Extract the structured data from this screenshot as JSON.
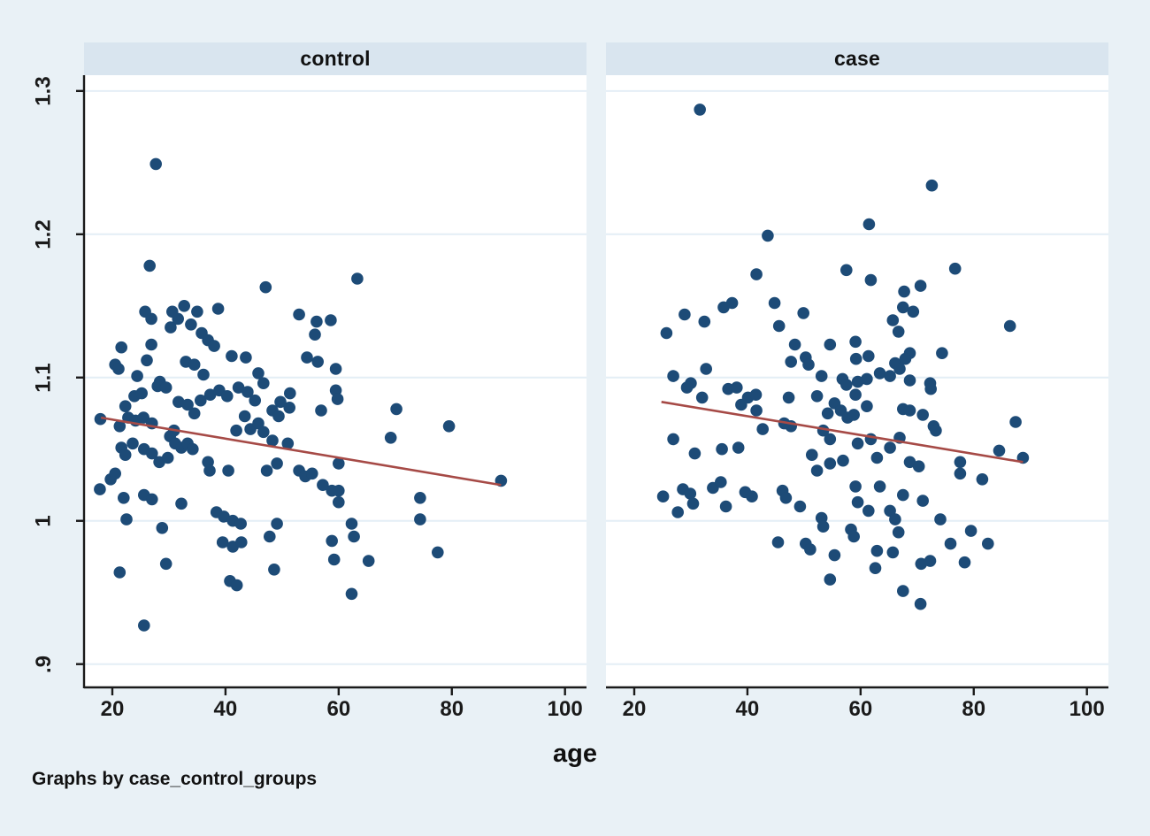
{
  "figure": {
    "background": "#e9f1f6",
    "plot_background": "#ffffff",
    "header_background": "#d9e5ef",
    "grid_color": "#e4eef6",
    "axis_color": "#1a1a1a",
    "point_color": "#1d4b77",
    "fit_line_color": "#a64a46",
    "x_axis_title": "age",
    "note": "Graphs by case_control_groups"
  },
  "chart_data": [
    {
      "type": "scatter",
      "title": "control",
      "xlabel": "age",
      "x_ticks": [
        20,
        40,
        60,
        80,
        100
      ],
      "y_ticks": [
        0.9,
        1.0,
        1.1,
        1.2,
        1.3
      ],
      "y_tick_labels": [
        ".9",
        "1",
        "1.1",
        "1.2",
        "1.3"
      ],
      "xlim": [
        15,
        103.8
      ],
      "ylim": [
        0.885,
        1.311
      ],
      "grid": "horizontal",
      "fit_line": {
        "x": [
          18,
          88.7
        ],
        "y": [
          1.072,
          1.025
        ]
      },
      "points": [
        [
          27.7,
          1.249
        ],
        [
          26.6,
          1.178
        ],
        [
          47.1,
          1.163
        ],
        [
          38.7,
          1.148
        ],
        [
          25.8,
          1.146
        ],
        [
          26.9,
          1.141
        ],
        [
          30.6,
          1.146
        ],
        [
          32.7,
          1.15
        ],
        [
          31.6,
          1.141
        ],
        [
          30.3,
          1.135
        ],
        [
          33.9,
          1.137
        ],
        [
          35.0,
          1.146
        ],
        [
          35.8,
          1.131
        ],
        [
          36.9,
          1.126
        ],
        [
          21.6,
          1.121
        ],
        [
          20.5,
          1.109
        ],
        [
          26.9,
          1.123
        ],
        [
          26.1,
          1.112
        ],
        [
          24.4,
          1.101
        ],
        [
          21.1,
          1.106
        ],
        [
          28.4,
          1.097
        ],
        [
          33.0,
          1.111
        ],
        [
          34.5,
          1.109
        ],
        [
          36.1,
          1.102
        ],
        [
          38.0,
          1.122
        ],
        [
          41.1,
          1.115
        ],
        [
          43.6,
          1.114
        ],
        [
          45.8,
          1.103
        ],
        [
          53.0,
          1.144
        ],
        [
          56.1,
          1.139
        ],
        [
          55.8,
          1.13
        ],
        [
          54.4,
          1.114
        ],
        [
          56.3,
          1.111
        ],
        [
          59.5,
          1.106
        ],
        [
          63.3,
          1.169
        ],
        [
          58.6,
          1.14
        ],
        [
          22.3,
          1.08
        ],
        [
          23.9,
          1.087
        ],
        [
          25.2,
          1.089
        ],
        [
          28.0,
          1.094
        ],
        [
          29.5,
          1.093
        ],
        [
          31.7,
          1.083
        ],
        [
          33.3,
          1.081
        ],
        [
          34.5,
          1.075
        ],
        [
          35.6,
          1.084
        ],
        [
          37.3,
          1.088
        ],
        [
          38.9,
          1.091
        ],
        [
          40.3,
          1.087
        ],
        [
          42.3,
          1.093
        ],
        [
          43.9,
          1.09
        ],
        [
          45.2,
          1.084
        ],
        [
          46.7,
          1.096
        ],
        [
          49.7,
          1.083
        ],
        [
          51.4,
          1.089
        ],
        [
          56.9,
          1.077
        ],
        [
          59.5,
          1.091
        ],
        [
          59.8,
          1.085
        ],
        [
          21.3,
          1.066
        ],
        [
          22.8,
          1.072
        ],
        [
          17.9,
          1.071
        ],
        [
          24.1,
          1.07
        ],
        [
          25.5,
          1.072
        ],
        [
          27.0,
          1.068
        ],
        [
          21.6,
          1.051
        ],
        [
          22.3,
          1.046
        ],
        [
          23.6,
          1.054
        ],
        [
          25.6,
          1.05
        ],
        [
          27.0,
          1.047
        ],
        [
          28.3,
          1.041
        ],
        [
          29.8,
          1.044
        ],
        [
          30.2,
          1.059
        ],
        [
          31.1,
          1.054
        ],
        [
          32.2,
          1.051
        ],
        [
          33.3,
          1.054
        ],
        [
          34.2,
          1.05
        ],
        [
          30.9,
          1.063
        ],
        [
          36.9,
          1.041
        ],
        [
          37.2,
          1.035
        ],
        [
          40.5,
          1.035
        ],
        [
          41.9,
          1.063
        ],
        [
          43.4,
          1.073
        ],
        [
          44.4,
          1.064
        ],
        [
          45.8,
          1.068
        ],
        [
          46.7,
          1.062
        ],
        [
          48.3,
          1.077
        ],
        [
          49.4,
          1.073
        ],
        [
          51.3,
          1.079
        ],
        [
          48.3,
          1.056
        ],
        [
          47.3,
          1.035
        ],
        [
          49.1,
          1.04
        ],
        [
          51.0,
          1.054
        ],
        [
          53.0,
          1.035
        ],
        [
          54.1,
          1.031
        ],
        [
          55.3,
          1.033
        ],
        [
          57.2,
          1.025
        ],
        [
          58.8,
          1.021
        ],
        [
          17.8,
          1.022
        ],
        [
          19.7,
          1.029
        ],
        [
          20.5,
          1.033
        ],
        [
          22.0,
          1.016
        ],
        [
          25.6,
          1.018
        ],
        [
          27.0,
          1.015
        ],
        [
          32.2,
          1.012
        ],
        [
          38.4,
          1.006
        ],
        [
          39.7,
          1.003
        ],
        [
          41.3,
          1.0
        ],
        [
          42.7,
          0.998
        ],
        [
          22.5,
          1.001
        ],
        [
          28.8,
          0.995
        ],
        [
          39.5,
          0.985
        ],
        [
          41.3,
          0.982
        ],
        [
          42.8,
          0.985
        ],
        [
          47.8,
          0.989
        ],
        [
          49.1,
          0.998
        ],
        [
          58.8,
          0.986
        ],
        [
          59.2,
          0.973
        ],
        [
          29.5,
          0.97
        ],
        [
          21.3,
          0.964
        ],
        [
          40.8,
          0.958
        ],
        [
          42.0,
          0.955
        ],
        [
          48.6,
          0.966
        ],
        [
          25.6,
          0.927
        ],
        [
          60.0,
          1.04
        ],
        [
          60.0,
          1.021
        ],
        [
          70.2,
          1.078
        ],
        [
          79.5,
          1.066
        ],
        [
          69.2,
          1.058
        ],
        [
          88.7,
          1.028
        ],
        [
          60.0,
          1.013
        ],
        [
          74.4,
          1.016
        ],
        [
          74.4,
          1.001
        ],
        [
          62.3,
          0.998
        ],
        [
          62.7,
          0.989
        ],
        [
          77.5,
          0.978
        ],
        [
          65.3,
          0.972
        ],
        [
          62.3,
          0.949
        ]
      ]
    },
    {
      "type": "scatter",
      "title": "case",
      "xlabel": "age",
      "x_ticks": [
        20,
        40,
        60,
        80,
        100
      ],
      "y_ticks": [
        0.9,
        1.0,
        1.1,
        1.2,
        1.3
      ],
      "y_tick_labels": [
        ".9",
        "1",
        "1.1",
        "1.2",
        "1.3"
      ],
      "xlim": [
        15,
        103.8
      ],
      "ylim": [
        0.885,
        1.311
      ],
      "grid": "horizontal",
      "fit_line": {
        "x": [
          24.8,
          88.7
        ],
        "y": [
          1.083,
          1.041
        ]
      },
      "points": [
        [
          31.6,
          1.287
        ],
        [
          43.6,
          1.199
        ],
        [
          41.6,
          1.172
        ],
        [
          57.5,
          1.175
        ],
        [
          44.8,
          1.152
        ],
        [
          37.3,
          1.152
        ],
        [
          35.8,
          1.149
        ],
        [
          28.9,
          1.144
        ],
        [
          32.4,
          1.139
        ],
        [
          25.7,
          1.131
        ],
        [
          45.6,
          1.136
        ],
        [
          49.9,
          1.145
        ],
        [
          48.4,
          1.123
        ],
        [
          54.6,
          1.123
        ],
        [
          59.1,
          1.125
        ],
        [
          47.7,
          1.111
        ],
        [
          50.3,
          1.114
        ],
        [
          50.8,
          1.109
        ],
        [
          53.1,
          1.101
        ],
        [
          56.8,
          1.099
        ],
        [
          26.9,
          1.101
        ],
        [
          30.0,
          1.096
        ],
        [
          32.7,
          1.106
        ],
        [
          72.6,
          1.234
        ],
        [
          61.5,
          1.207
        ],
        [
          76.7,
          1.176
        ],
        [
          61.8,
          1.168
        ],
        [
          67.7,
          1.16
        ],
        [
          70.6,
          1.164
        ],
        [
          67.5,
          1.149
        ],
        [
          69.3,
          1.146
        ],
        [
          65.7,
          1.14
        ],
        [
          66.7,
          1.132
        ],
        [
          61.4,
          1.115
        ],
        [
          68.7,
          1.117
        ],
        [
          86.4,
          1.136
        ],
        [
          59.2,
          1.113
        ],
        [
          74.4,
          1.117
        ],
        [
          66.1,
          1.11
        ],
        [
          67.9,
          1.113
        ],
        [
          63.4,
          1.103
        ],
        [
          65.2,
          1.101
        ],
        [
          66.9,
          1.106
        ],
        [
          61.1,
          1.099
        ],
        [
          59.5,
          1.097
        ],
        [
          68.7,
          1.098
        ],
        [
          72.3,
          1.096
        ],
        [
          29.3,
          1.093
        ],
        [
          32.0,
          1.086
        ],
        [
          36.6,
          1.092
        ],
        [
          38.1,
          1.093
        ],
        [
          38.9,
          1.081
        ],
        [
          40.1,
          1.086
        ],
        [
          41.5,
          1.088
        ],
        [
          41.6,
          1.077
        ],
        [
          42.7,
          1.064
        ],
        [
          47.3,
          1.086
        ],
        [
          47.7,
          1.066
        ],
        [
          46.5,
          1.068
        ],
        [
          52.3,
          1.087
        ],
        [
          54.2,
          1.075
        ],
        [
          55.4,
          1.082
        ],
        [
          56.5,
          1.077
        ],
        [
          57.7,
          1.072
        ],
        [
          58.8,
          1.074
        ],
        [
          59.1,
          1.088
        ],
        [
          57.5,
          1.095
        ],
        [
          53.4,
          1.063
        ],
        [
          54.6,
          1.057
        ],
        [
          26.9,
          1.057
        ],
        [
          30.7,
          1.047
        ],
        [
          35.5,
          1.05
        ],
        [
          38.4,
          1.051
        ],
        [
          51.4,
          1.046
        ],
        [
          52.3,
          1.035
        ],
        [
          54.6,
          1.04
        ],
        [
          56.9,
          1.042
        ],
        [
          59.1,
          1.024
        ],
        [
          25.1,
          1.017
        ],
        [
          28.6,
          1.022
        ],
        [
          29.9,
          1.019
        ],
        [
          30.4,
          1.012
        ],
        [
          27.7,
          1.006
        ],
        [
          33.9,
          1.023
        ],
        [
          35.3,
          1.027
        ],
        [
          36.2,
          1.01
        ],
        [
          39.6,
          1.02
        ],
        [
          40.8,
          1.017
        ],
        [
          46.2,
          1.021
        ],
        [
          46.8,
          1.016
        ],
        [
          49.3,
          1.01
        ],
        [
          53.1,
          1.002
        ],
        [
          53.4,
          0.996
        ],
        [
          58.3,
          0.994
        ],
        [
          58.8,
          0.989
        ],
        [
          45.4,
          0.985
        ],
        [
          50.3,
          0.984
        ],
        [
          51.1,
          0.98
        ],
        [
          55.4,
          0.976
        ],
        [
          54.6,
          0.959
        ],
        [
          72.4,
          1.092
        ],
        [
          61.1,
          1.08
        ],
        [
          67.5,
          1.078
        ],
        [
          68.7,
          1.077
        ],
        [
          71.0,
          1.074
        ],
        [
          72.9,
          1.066
        ],
        [
          73.3,
          1.063
        ],
        [
          87.4,
          1.069
        ],
        [
          59.5,
          1.054
        ],
        [
          62.9,
          1.044
        ],
        [
          61.8,
          1.057
        ],
        [
          65.2,
          1.051
        ],
        [
          66.9,
          1.058
        ],
        [
          68.7,
          1.041
        ],
        [
          70.3,
          1.038
        ],
        [
          77.6,
          1.041
        ],
        [
          77.6,
          1.033
        ],
        [
          81.5,
          1.029
        ],
        [
          84.5,
          1.049
        ],
        [
          88.7,
          1.044
        ],
        [
          63.4,
          1.024
        ],
        [
          67.5,
          1.018
        ],
        [
          71.0,
          1.014
        ],
        [
          59.5,
          1.013
        ],
        [
          61.4,
          1.007
        ],
        [
          65.2,
          1.007
        ],
        [
          66.1,
          1.001
        ],
        [
          74.1,
          1.001
        ],
        [
          66.7,
          0.992
        ],
        [
          79.5,
          0.993
        ],
        [
          75.9,
          0.984
        ],
        [
          82.5,
          0.984
        ],
        [
          62.9,
          0.979
        ],
        [
          65.7,
          0.978
        ],
        [
          62.6,
          0.967
        ],
        [
          70.7,
          0.97
        ],
        [
          72.3,
          0.972
        ],
        [
          78.4,
          0.971
        ],
        [
          67.5,
          0.951
        ],
        [
          70.6,
          0.942
        ]
      ]
    }
  ]
}
